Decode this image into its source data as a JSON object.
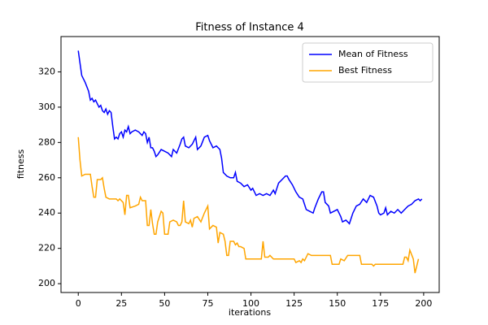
{
  "chart_data": {
    "type": "line",
    "title": "Fitness of Instance 4",
    "xlabel": "iterations",
    "ylabel": "fitness",
    "xlim": [
      -10,
      209
    ],
    "ylim": [
      195,
      340
    ],
    "xticks": [
      0,
      25,
      50,
      75,
      100,
      125,
      150,
      175,
      200
    ],
    "yticks": [
      200,
      220,
      240,
      260,
      280,
      300,
      320
    ],
    "legend": "upper right",
    "series": [
      {
        "name": "Mean of Fitness",
        "color": "#0000ff",
        "x": [
          0,
          1,
          2,
          4,
          6,
          7,
          8,
          9,
          10,
          11,
          12,
          13,
          14,
          15,
          16,
          17,
          18,
          19,
          20,
          21,
          22,
          23,
          24,
          25,
          26,
          27,
          28,
          29,
          30,
          31,
          33,
          35,
          37,
          38,
          39,
          40,
          41,
          42,
          43,
          44,
          45,
          46,
          48,
          50,
          52,
          54,
          55,
          57,
          59,
          60,
          61,
          62,
          64,
          66,
          68,
          69,
          71,
          73,
          75,
          76,
          78,
          80,
          82,
          83,
          84,
          86,
          88,
          90,
          91,
          92,
          94,
          96,
          98,
          100,
          101,
          103,
          105,
          107,
          109,
          111,
          113,
          114,
          116,
          118,
          120,
          121,
          122,
          124,
          126,
          128,
          130,
          131,
          132,
          134,
          136,
          137,
          139,
          141,
          142,
          143,
          145,
          146,
          148,
          150,
          152,
          153,
          155,
          157,
          159,
          161,
          163,
          165,
          167,
          169,
          171,
          173,
          174,
          175,
          177,
          178,
          179,
          181,
          183,
          185,
          187,
          189,
          191,
          193,
          195,
          197,
          198,
          199
        ],
        "values": [
          332,
          325,
          318,
          314,
          309,
          304,
          305,
          303,
          304,
          302,
          300,
          301,
          298,
          297,
          299,
          296,
          298,
          297,
          289,
          282,
          283,
          282,
          285,
          286,
          283,
          287,
          286,
          289,
          285,
          286,
          287,
          286,
          284,
          286,
          285,
          280,
          283,
          277,
          277,
          275,
          272,
          273,
          276,
          275,
          274,
          272,
          276,
          274,
          279,
          282,
          283,
          278,
          277,
          279,
          283,
          276,
          278,
          283,
          284,
          281,
          277,
          278,
          276,
          271,
          263,
          261,
          260,
          260,
          263,
          258,
          257,
          255,
          256,
          253,
          254,
          250,
          251,
          250,
          251,
          250,
          253,
          251,
          257,
          259,
          261,
          261,
          259,
          256,
          252,
          249,
          248,
          245,
          242,
          241,
          240,
          243,
          248,
          252,
          252,
          246,
          244,
          240,
          241,
          242,
          238,
          235,
          236,
          234,
          240,
          244,
          245,
          248,
          246,
          250,
          249,
          244,
          240,
          239,
          240,
          243,
          239,
          241,
          240,
          242,
          240,
          242,
          244,
          245,
          247,
          248,
          247,
          248
        ]
      },
      {
        "name": "Best Fitness",
        "color": "#ffa500",
        "x": [
          0,
          1,
          2,
          4,
          7,
          8,
          9,
          10,
          11,
          13,
          14,
          15,
          16,
          18,
          22,
          23,
          24,
          26,
          27,
          28,
          29,
          30,
          33,
          35,
          36,
          37,
          39,
          40,
          41,
          42,
          43,
          44,
          45,
          46,
          48,
          49,
          50,
          52,
          53,
          55,
          57,
          58,
          59,
          60,
          61,
          62,
          64,
          65,
          66,
          67,
          69,
          71,
          73,
          75,
          76,
          78,
          80,
          81,
          82,
          84,
          85,
          86,
          87,
          88,
          90,
          91,
          92,
          93,
          94,
          96,
          97,
          100,
          106,
          107,
          108,
          110,
          111,
          113,
          125,
          126,
          128,
          129,
          130,
          131,
          133,
          135,
          146,
          147,
          151,
          152,
          154,
          156,
          163,
          164,
          170,
          171,
          172,
          188,
          189,
          190,
          191,
          192,
          194,
          195,
          196,
          197
        ],
        "values": [
          283,
          270,
          261,
          262,
          262,
          255,
          249,
          249,
          259,
          259,
          260,
          254,
          249,
          248,
          248,
          247,
          248,
          246,
          239,
          250,
          250,
          243,
          244,
          245,
          249,
          247,
          247,
          233,
          233,
          242,
          234,
          228,
          228,
          235,
          241,
          240,
          228,
          228,
          235,
          236,
          235,
          233,
          233,
          235,
          247,
          235,
          234,
          236,
          232,
          237,
          238,
          235,
          240,
          244,
          231,
          233,
          232,
          223,
          229,
          228,
          224,
          216,
          216,
          224,
          224,
          222,
          223,
          221,
          221,
          220,
          214,
          214,
          214,
          224,
          215,
          215,
          216,
          214,
          214,
          212,
          213,
          212,
          214,
          213,
          217,
          216,
          216,
          211,
          211,
          214,
          213,
          216,
          216,
          211,
          211,
          210,
          211,
          211,
          215,
          215,
          213,
          219,
          214,
          206,
          210,
          214
        ]
      }
    ]
  }
}
